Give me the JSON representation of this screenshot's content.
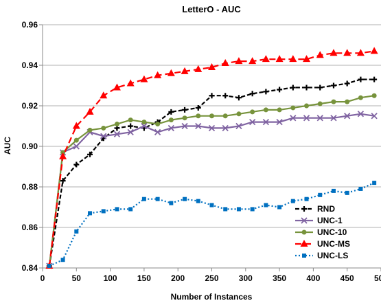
{
  "chart_data": {
    "type": "line",
    "title": "LetterO - AUC",
    "xlabel": "Number of Instances",
    "ylabel": "AUC",
    "xlim": [
      0,
      500
    ],
    "ylim": [
      0.84,
      0.96
    ],
    "xticks": [
      0,
      50,
      100,
      150,
      200,
      250,
      300,
      350,
      400,
      450,
      500
    ],
    "yticks": [
      0.84,
      0.86,
      0.88,
      0.9,
      0.92,
      0.94,
      0.96
    ],
    "xtick_labels": [
      "0",
      "50",
      "100",
      "150",
      "200",
      "250",
      "300",
      "350",
      "400",
      "450",
      "500"
    ],
    "ytick_labels": [
      "0.84",
      "0.86",
      "0.88",
      "0.90",
      "0.92",
      "0.94",
      "0.96"
    ],
    "grid": "horizontal",
    "legend_position": "bottom-right",
    "x": [
      10,
      30,
      50,
      70,
      90,
      110,
      130,
      150,
      170,
      190,
      210,
      230,
      250,
      270,
      290,
      310,
      330,
      350,
      370,
      390,
      410,
      430,
      450,
      470,
      490
    ],
    "series": [
      {
        "name": "RND",
        "color": "#000000",
        "marker": "plus",
        "dash": "6,3",
        "values": [
          0.841,
          0.883,
          0.891,
          0.896,
          0.904,
          0.909,
          0.91,
          0.909,
          0.912,
          0.917,
          0.918,
          0.919,
          0.925,
          0.925,
          0.924,
          0.926,
          0.927,
          0.928,
          0.929,
          0.929,
          0.929,
          0.93,
          0.931,
          0.933,
          0.933
        ]
      },
      {
        "name": "UNC-1",
        "color": "#8064a2",
        "marker": "x",
        "dash": "",
        "values": [
          0.841,
          0.897,
          0.9,
          0.907,
          0.905,
          0.906,
          0.907,
          0.91,
          0.907,
          0.909,
          0.91,
          0.91,
          0.909,
          0.909,
          0.91,
          0.912,
          0.912,
          0.912,
          0.914,
          0.914,
          0.914,
          0.914,
          0.915,
          0.916,
          0.915
        ]
      },
      {
        "name": "UNC-10",
        "color": "#77933c",
        "marker": "circle",
        "dash": "",
        "values": [
          0.841,
          0.897,
          0.903,
          0.908,
          0.909,
          0.911,
          0.913,
          0.912,
          0.911,
          0.913,
          0.914,
          0.915,
          0.915,
          0.915,
          0.916,
          0.917,
          0.918,
          0.918,
          0.919,
          0.92,
          0.921,
          0.922,
          0.922,
          0.924,
          0.925
        ]
      },
      {
        "name": "UNC-MS",
        "color": "#ff0000",
        "marker": "triangle",
        "dash": "9,5",
        "values": [
          0.841,
          0.895,
          0.91,
          0.917,
          0.925,
          0.929,
          0.931,
          0.933,
          0.935,
          0.936,
          0.937,
          0.938,
          0.939,
          0.941,
          0.942,
          0.942,
          0.943,
          0.943,
          0.943,
          0.943,
          0.945,
          0.946,
          0.946,
          0.946,
          0.947
        ]
      },
      {
        "name": "UNC-LS",
        "color": "#0070c0",
        "marker": "square",
        "dash": "2,3",
        "values": [
          0.841,
          0.844,
          0.858,
          0.867,
          0.868,
          0.869,
          0.869,
          0.874,
          0.874,
          0.872,
          0.874,
          0.873,
          0.871,
          0.869,
          0.869,
          0.869,
          0.871,
          0.87,
          0.873,
          0.874,
          0.876,
          0.878,
          0.877,
          0.879,
          0.882
        ]
      }
    ]
  }
}
